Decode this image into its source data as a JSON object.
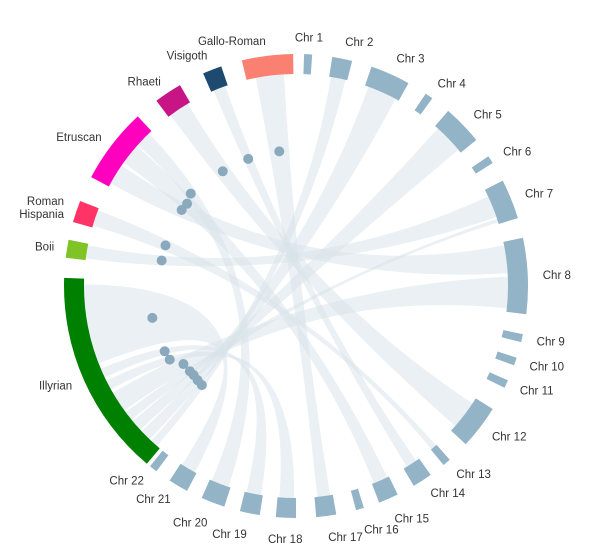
{
  "chart_data": {
    "type": "chord",
    "groups": [
      {
        "id": "gallo-roman",
        "label": "Gallo-Roman",
        "color": "#fa8072",
        "kind": "ancestry",
        "start_deg": -13.5,
        "end_deg": -0.7
      },
      {
        "id": "visigoth",
        "label": "Visigoth",
        "color": "#1d4a6e",
        "kind": "ancestry",
        "start_deg": -23.6,
        "end_deg": -18.8
      },
      {
        "id": "rhaeti",
        "label": "Rhaeti",
        "color": "#c71585",
        "kind": "ancestry",
        "start_deg": -37.0,
        "end_deg": -30.0
      },
      {
        "id": "etruscan",
        "label": "Etruscan",
        "color": "#ff00bf",
        "kind": "ancestry",
        "start_deg": -62.0,
        "end_deg": -43.0
      },
      {
        "id": "roman-hispania",
        "label": "Roman\nHispania",
        "color": "#ff3366",
        "kind": "ancestry",
        "start_deg": -74.0,
        "end_deg": -68.5
      },
      {
        "id": "boii",
        "label": "Boii",
        "color": "#7ec427",
        "kind": "ancestry",
        "start_deg": -83.0,
        "end_deg": -78.5
      },
      {
        "id": "illyrian",
        "label": "Illyrian",
        "color": "#008000",
        "kind": "ancestry",
        "start_deg": -140.0,
        "end_deg": -88.0
      },
      {
        "id": "chr1",
        "label": "Chr 1",
        "color": "#93b3c6",
        "kind": "chromosome",
        "start_deg": 2.0,
        "end_deg": 4.0
      },
      {
        "id": "chr2",
        "label": "Chr 2",
        "color": "#93b3c6",
        "kind": "chromosome",
        "start_deg": 9.0,
        "end_deg": 14.0
      },
      {
        "id": "chr3",
        "label": "Chr 3",
        "color": "#93b3c6",
        "kind": "chromosome",
        "start_deg": 19.0,
        "end_deg": 29.0
      },
      {
        "id": "chr4",
        "label": "Chr 4",
        "color": "#93b3c6",
        "kind": "chromosome",
        "start_deg": 34.0,
        "end_deg": 36.0
      },
      {
        "id": "chr5",
        "label": "Chr 5",
        "color": "#93b3c6",
        "kind": "chromosome",
        "start_deg": 41.0,
        "end_deg": 51.0
      },
      {
        "id": "chr6",
        "label": "Chr 6",
        "color": "#93b3c6",
        "kind": "chromosome",
        "start_deg": 56.0,
        "end_deg": 58.0
      },
      {
        "id": "chr7",
        "label": "Chr 7",
        "color": "#93b3c6",
        "kind": "chromosome",
        "start_deg": 63.0,
        "end_deg": 73.0
      },
      {
        "id": "chr8",
        "label": "Chr 8",
        "color": "#93b3c6",
        "kind": "chromosome",
        "start_deg": 78.0,
        "end_deg": 97.0
      },
      {
        "id": "chr9",
        "label": "Chr 9",
        "color": "#93b3c6",
        "kind": "chromosome",
        "start_deg": 102.0,
        "end_deg": 104.0
      },
      {
        "id": "chr10",
        "label": "Chr 10",
        "color": "#93b3c6",
        "kind": "chromosome",
        "start_deg": 108.0,
        "end_deg": 110.0
      },
      {
        "id": "chr11",
        "label": "Chr 11",
        "color": "#93b3c6",
        "kind": "chromosome",
        "start_deg": 114.0,
        "end_deg": 116.0
      },
      {
        "id": "chr12",
        "label": "Chr 12",
        "color": "#93b3c6",
        "kind": "chromosome",
        "start_deg": 122.0,
        "end_deg": 133.0
      },
      {
        "id": "chr13",
        "label": "Chr 13",
        "color": "#93b3c6",
        "kind": "chromosome",
        "start_deg": 138.5,
        "end_deg": 140.5
      },
      {
        "id": "chr14",
        "label": "Chr 14",
        "color": "#93b3c6",
        "kind": "chromosome",
        "start_deg": 144.5,
        "end_deg": 149.5
      },
      {
        "id": "chr15",
        "label": "Chr 15",
        "color": "#93b3c6",
        "kind": "chromosome",
        "start_deg": 154.0,
        "end_deg": 159.0
      },
      {
        "id": "chr16",
        "label": "Chr 16",
        "color": "#93b3c6",
        "kind": "chromosome",
        "start_deg": 163.0,
        "end_deg": 165.0
      },
      {
        "id": "chr17",
        "label": "Chr 17",
        "color": "#93b3c6",
        "kind": "chromosome",
        "start_deg": 170.0,
        "end_deg": 175.0
      },
      {
        "id": "chr18",
        "label": "Chr 18",
        "color": "#93b3c6",
        "kind": "chromosome",
        "start_deg": 180.0,
        "end_deg": 185.0
      },
      {
        "id": "chr19",
        "label": "Chr 19",
        "color": "#93b3c6",
        "kind": "chromosome",
        "start_deg": 189.0,
        "end_deg": 194.0
      },
      {
        "id": "chr20",
        "label": "Chr 20",
        "color": "#93b3c6",
        "kind": "chromosome",
        "start_deg": 198.0,
        "end_deg": 204.0
      },
      {
        "id": "chr21",
        "label": "Chr 21",
        "color": "#93b3c6",
        "kind": "chromosome",
        "start_deg": 208.0,
        "end_deg": 213.0
      },
      {
        "id": "chr22",
        "label": "Chr 22",
        "color": "#93b3c6",
        "kind": "chromosome",
        "start_deg": 217.0,
        "end_deg": 219.0
      }
    ],
    "chords": [
      {
        "source": "gallo-roman",
        "target": "chr17",
        "s": [
          0.2,
          0.8
        ],
        "t": [
          0.15,
          0.85
        ]
      },
      {
        "source": "visigoth",
        "target": "chr14",
        "s": [
          0.15,
          0.85
        ],
        "t": [
          0.2,
          0.8
        ]
      },
      {
        "source": "rhaeti",
        "target": "chr12",
        "s": [
          0.1,
          0.9
        ],
        "t": [
          0.15,
          0.85
        ]
      },
      {
        "source": "etruscan",
        "target": "chr8",
        "s": [
          0.05,
          0.35
        ],
        "t": [
          0.05,
          0.45
        ]
      },
      {
        "source": "etruscan",
        "target": "chr15",
        "s": [
          0.4,
          0.7
        ],
        "t": [
          0.1,
          0.9
        ]
      },
      {
        "source": "etruscan",
        "target": "chr20",
        "s": [
          0.72,
          0.95
        ],
        "t": [
          0.1,
          0.9
        ]
      },
      {
        "source": "roman-hispania",
        "target": "chr13",
        "s": [
          0.1,
          0.9
        ],
        "t": [
          0.1,
          0.9
        ]
      },
      {
        "source": "boii",
        "target": "chr7",
        "s": [
          0.1,
          0.9
        ],
        "t": [
          0.2,
          0.8
        ]
      },
      {
        "source": "illyrian",
        "target": "chr2",
        "s": [
          0.02,
          0.06
        ],
        "t": [
          0.1,
          0.9
        ]
      },
      {
        "source": "illyrian",
        "target": "chr3",
        "s": [
          0.07,
          0.13
        ],
        "t": [
          0.1,
          0.9
        ]
      },
      {
        "source": "illyrian",
        "target": "chr5",
        "s": [
          0.14,
          0.2
        ],
        "t": [
          0.1,
          0.9
        ]
      },
      {
        "source": "illyrian",
        "target": "chr7",
        "s": [
          0.21,
          0.26
        ],
        "t": [
          0.85,
          0.95
        ]
      },
      {
        "source": "illyrian",
        "target": "chr8",
        "s": [
          0.27,
          0.38
        ],
        "t": [
          0.5,
          0.95
        ]
      },
      {
        "source": "illyrian",
        "target": "chr18",
        "s": [
          0.4,
          0.45
        ],
        "t": [
          0.1,
          0.9
        ]
      },
      {
        "source": "illyrian",
        "target": "chr19",
        "s": [
          0.47,
          0.52
        ],
        "t": [
          0.1,
          0.9
        ]
      },
      {
        "source": "illyrian",
        "target": "chr21",
        "s": [
          0.55,
          0.97
        ],
        "t": [
          0.1,
          0.9
        ]
      }
    ]
  }
}
